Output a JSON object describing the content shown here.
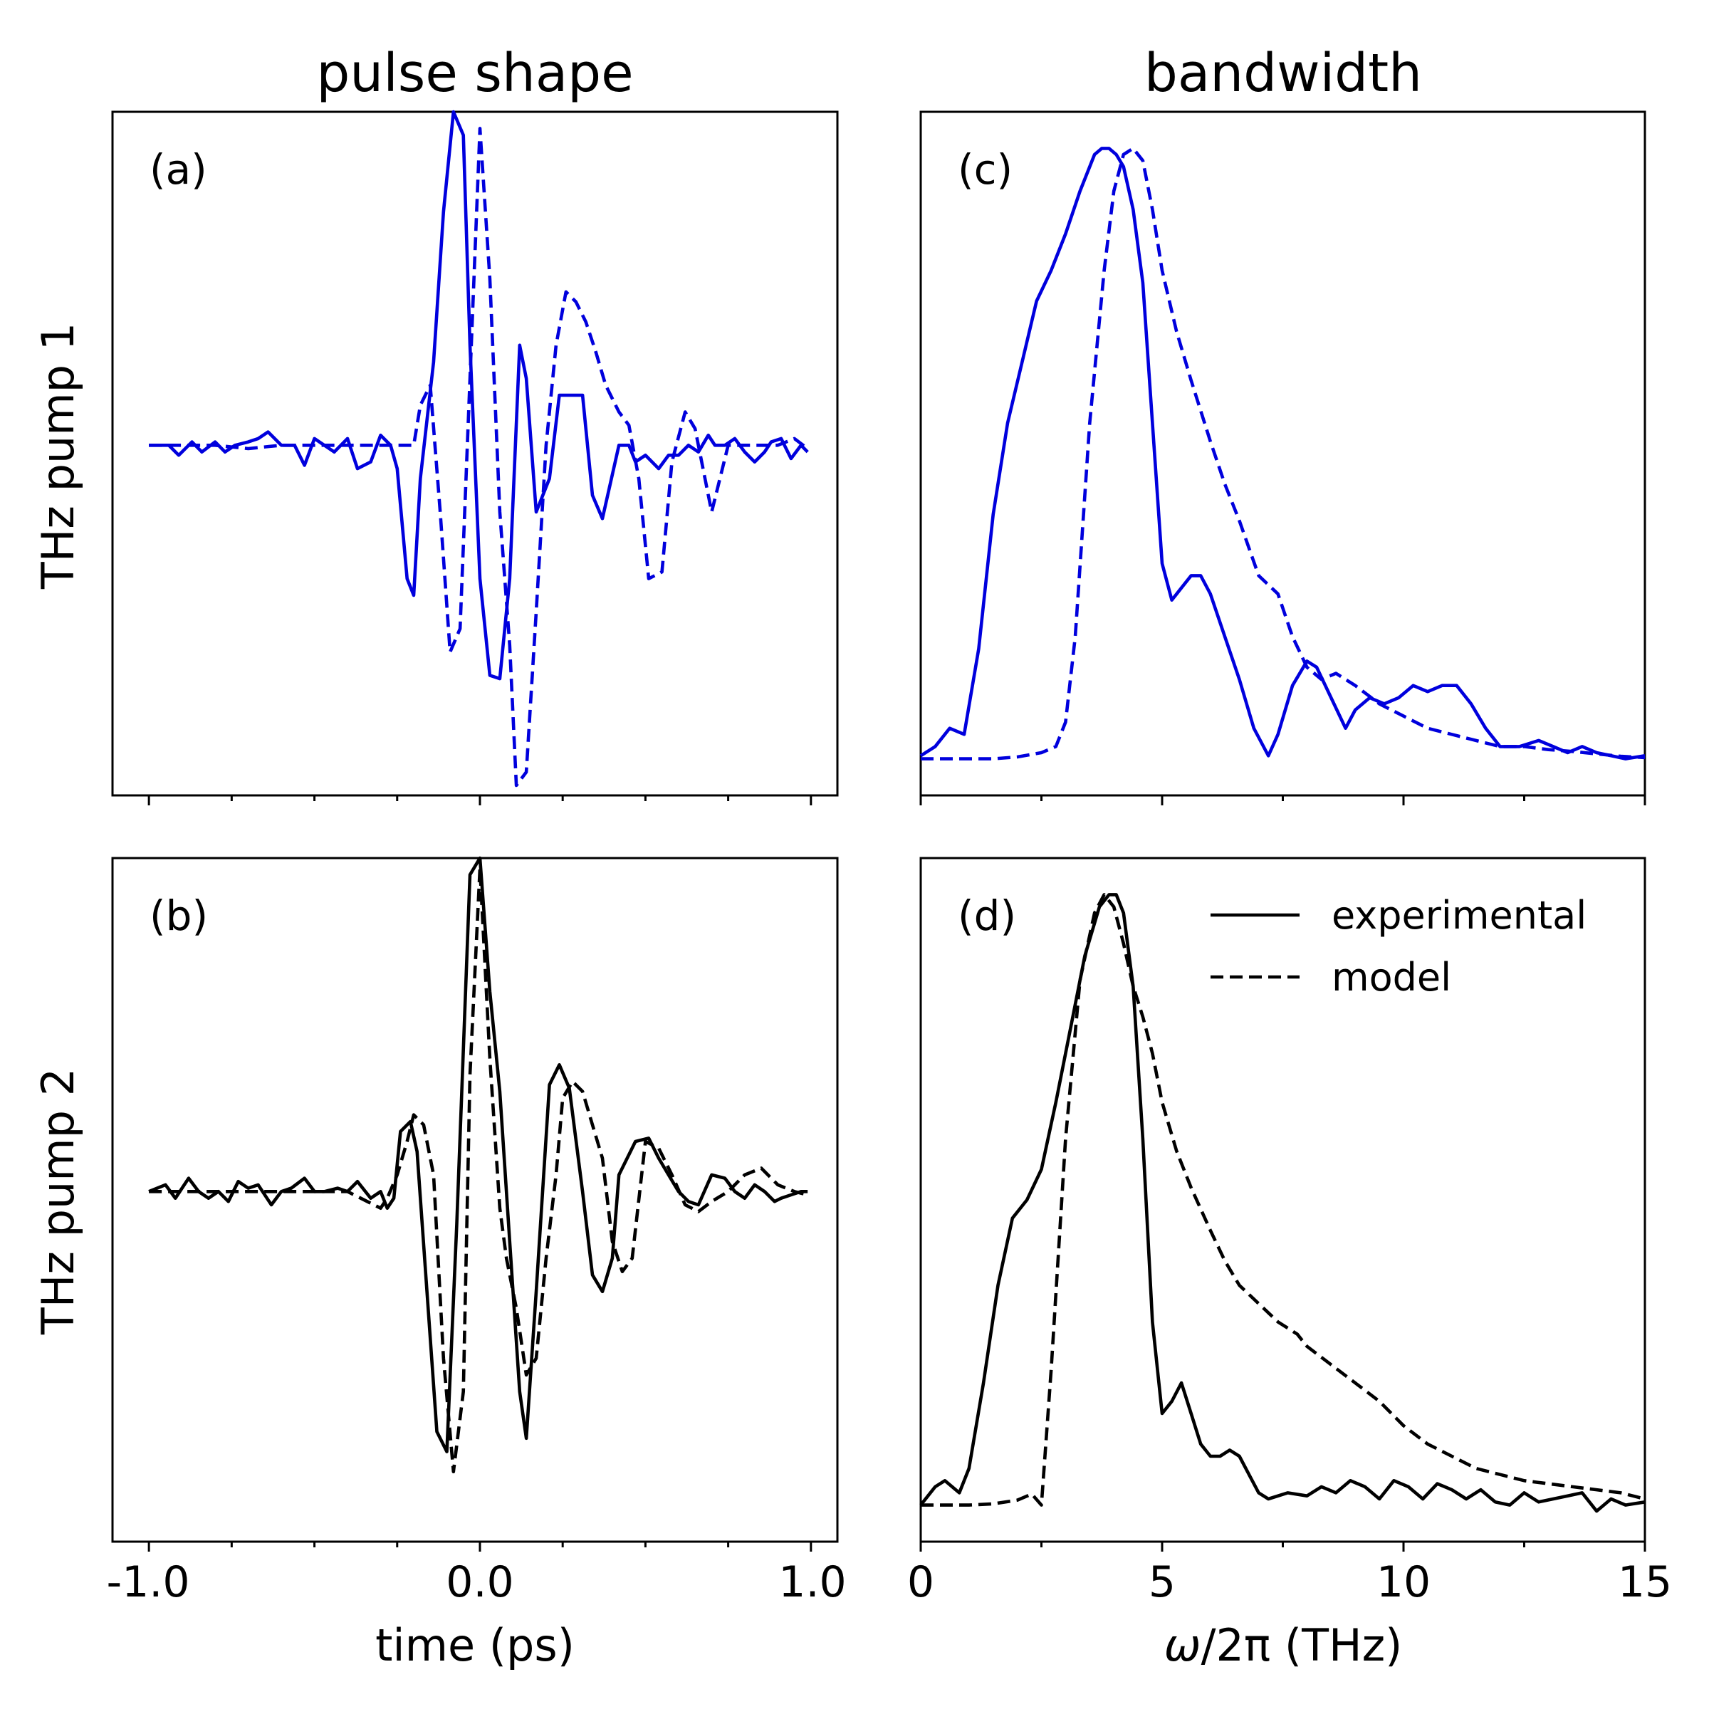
{
  "colors": {
    "pump1": "#0000dd",
    "pump2": "#000000"
  },
  "titles": {
    "left": "pulse shape",
    "right": "bandwidth"
  },
  "row_labels": {
    "top": "THz pump 1",
    "bottom": "THz pump 2"
  },
  "x_labels": {
    "time": "time (ps)",
    "freq_prefix": "ω",
    "freq_suffix": "/2π (THz)"
  },
  "legend": {
    "solid": "experimental",
    "dashed": "model"
  },
  "chart_data": [
    {
      "id": "a",
      "panel_label": "(a)",
      "type": "line",
      "xlabel": "time (ps)",
      "ylabel": "THz pump 1",
      "xlim": [
        -1.11,
        1.08
      ],
      "ylim": [
        -1.05,
        1.0
      ],
      "xticks": [
        -1.0,
        0.0,
        1.0
      ],
      "xtick_labels": [
        "-1.0",
        "0.0",
        "1.0"
      ],
      "minor_xticks": [
        -0.75,
        -0.5,
        -0.25,
        0.25,
        0.5,
        0.75
      ],
      "show_xtick_labels": false,
      "series": [
        {
          "name": "experimental",
          "style": "solid",
          "x": [
            -1.0,
            -0.94,
            -0.91,
            -0.87,
            -0.84,
            -0.8,
            -0.77,
            -0.74,
            -0.7,
            -0.67,
            -0.64,
            -0.6,
            -0.56,
            -0.53,
            -0.5,
            -0.47,
            -0.44,
            -0.4,
            -0.37,
            -0.33,
            -0.3,
            -0.27,
            -0.25,
            -0.22,
            -0.2,
            -0.18,
            -0.14,
            -0.11,
            -0.08,
            -0.05,
            -0.03,
            0.0,
            0.03,
            0.06,
            0.09,
            0.12,
            0.14,
            0.17,
            0.21,
            0.24,
            0.27,
            0.31,
            0.34,
            0.37,
            0.42,
            0.45,
            0.47,
            0.5,
            0.54,
            0.57,
            0.6,
            0.63,
            0.66,
            0.69,
            0.71,
            0.74,
            0.77,
            0.8,
            0.83,
            0.86,
            0.88,
            0.91,
            0.94,
            0.97,
            0.99
          ],
          "y": [
            0.0,
            0.0,
            -0.03,
            0.01,
            -0.02,
            0.01,
            -0.02,
            0.0,
            0.01,
            0.02,
            0.04,
            0.0,
            0.0,
            -0.06,
            0.02,
            0.0,
            -0.02,
            0.02,
            -0.07,
            -0.05,
            0.03,
            0.0,
            -0.07,
            -0.4,
            -0.45,
            -0.1,
            0.25,
            0.7,
            1.0,
            0.93,
            0.3,
            -0.4,
            -0.69,
            -0.7,
            -0.4,
            0.3,
            0.2,
            -0.2,
            -0.1,
            0.15,
            0.15,
            0.15,
            -0.15,
            -0.22,
            0.0,
            0.0,
            -0.05,
            -0.03,
            -0.07,
            -0.03,
            -0.03,
            0.0,
            -0.02,
            0.03,
            0.0,
            0.0,
            0.02,
            -0.02,
            -0.05,
            -0.02,
            0.01,
            0.02,
            -0.04,
            0.0,
            -0.02
          ]
        },
        {
          "name": "model",
          "style": "dashed",
          "x": [
            -1.0,
            -0.9,
            -0.8,
            -0.7,
            -0.6,
            -0.5,
            -0.4,
            -0.35,
            -0.3,
            -0.25,
            -0.2,
            -0.18,
            -0.15,
            -0.12,
            -0.09,
            -0.06,
            -0.03,
            0.0,
            0.03,
            0.06,
            0.09,
            0.11,
            0.14,
            0.17,
            0.2,
            0.23,
            0.26,
            0.29,
            0.32,
            0.35,
            0.38,
            0.42,
            0.45,
            0.48,
            0.51,
            0.55,
            0.58,
            0.62,
            0.65,
            0.7,
            0.75,
            0.8,
            0.85,
            0.9,
            0.95,
            0.99
          ],
          "y": [
            0.0,
            0.0,
            0.0,
            -0.01,
            0.0,
            0.0,
            0.0,
            0.0,
            0.0,
            0.0,
            0.0,
            0.12,
            0.18,
            -0.2,
            -0.62,
            -0.55,
            0.2,
            0.95,
            0.5,
            -0.2,
            -0.6,
            -1.02,
            -0.98,
            -0.5,
            0.0,
            0.3,
            0.46,
            0.43,
            0.37,
            0.28,
            0.18,
            0.1,
            0.06,
            -0.1,
            -0.4,
            -0.38,
            -0.05,
            0.1,
            0.05,
            -0.2,
            0.0,
            0.0,
            0.0,
            0.0,
            0.02,
            -0.01
          ]
        }
      ]
    },
    {
      "id": "b",
      "panel_label": "(b)",
      "type": "line",
      "xlabel": "time (ps)",
      "ylabel": "THz pump 2",
      "xlim": [
        -1.11,
        1.08
      ],
      "ylim": [
        -1.05,
        1.0
      ],
      "xticks": [
        -1.0,
        0.0,
        1.0
      ],
      "xtick_labels": [
        "-1.0",
        "0.0",
        "1.0"
      ],
      "minor_xticks": [
        -0.75,
        -0.5,
        -0.25,
        0.25,
        0.5,
        0.75
      ],
      "show_xtick_labels": true,
      "series": [
        {
          "name": "experimental",
          "style": "solid",
          "x": [
            -1.0,
            -0.95,
            -0.92,
            -0.88,
            -0.85,
            -0.82,
            -0.79,
            -0.76,
            -0.73,
            -0.7,
            -0.67,
            -0.63,
            -0.6,
            -0.57,
            -0.53,
            -0.5,
            -0.47,
            -0.43,
            -0.4,
            -0.37,
            -0.33,
            -0.3,
            -0.28,
            -0.26,
            -0.24,
            -0.21,
            -0.19,
            -0.16,
            -0.13,
            -0.1,
            -0.07,
            -0.03,
            0.0,
            0.03,
            0.06,
            0.09,
            0.12,
            0.14,
            0.17,
            0.21,
            0.24,
            0.27,
            0.31,
            0.34,
            0.37,
            0.4,
            0.42,
            0.47,
            0.51,
            0.54,
            0.57,
            0.6,
            0.63,
            0.66,
            0.7,
            0.74,
            0.77,
            0.8,
            0.83,
            0.86,
            0.89,
            0.91,
            0.94,
            0.97,
            0.99
          ],
          "y": [
            0.0,
            0.02,
            -0.02,
            0.04,
            0.0,
            -0.02,
            0.0,
            -0.03,
            0.03,
            0.01,
            0.02,
            -0.04,
            0.0,
            0.01,
            0.04,
            0.0,
            0.0,
            0.01,
            0.0,
            0.03,
            -0.02,
            0.0,
            -0.05,
            -0.02,
            0.18,
            0.21,
            0.12,
            -0.3,
            -0.72,
            -0.78,
            -0.1,
            0.95,
            1.0,
            0.6,
            0.3,
            -0.15,
            -0.6,
            -0.74,
            -0.3,
            0.32,
            0.38,
            0.31,
            0.0,
            -0.25,
            -0.3,
            -0.2,
            0.05,
            0.15,
            0.16,
            0.1,
            0.05,
            0.0,
            -0.03,
            -0.04,
            0.05,
            0.04,
            0.0,
            -0.02,
            0.02,
            0.0,
            -0.03,
            -0.02,
            -0.01,
            0.0,
            0.0
          ]
        },
        {
          "name": "model",
          "style": "dashed",
          "x": [
            -1.0,
            -0.9,
            -0.8,
            -0.7,
            -0.6,
            -0.5,
            -0.4,
            -0.3,
            -0.28,
            -0.25,
            -0.22,
            -0.2,
            -0.17,
            -0.14,
            -0.11,
            -0.08,
            -0.05,
            -0.03,
            0.0,
            0.03,
            0.06,
            0.08,
            0.11,
            0.14,
            0.17,
            0.2,
            0.23,
            0.25,
            0.28,
            0.31,
            0.34,
            0.37,
            0.4,
            0.43,
            0.46,
            0.5,
            0.54,
            0.58,
            0.62,
            0.66,
            0.7,
            0.75,
            0.8,
            0.85,
            0.9,
            0.95,
            0.99
          ],
          "y": [
            0.0,
            0.0,
            0.0,
            0.0,
            0.0,
            0.0,
            0.0,
            -0.05,
            -0.02,
            0.05,
            0.15,
            0.23,
            0.2,
            0.05,
            -0.5,
            -0.84,
            -0.6,
            0.35,
            0.97,
            0.4,
            -0.05,
            -0.2,
            -0.35,
            -0.55,
            -0.5,
            -0.2,
            0.05,
            0.28,
            0.33,
            0.3,
            0.2,
            0.1,
            -0.15,
            -0.24,
            -0.2,
            0.15,
            0.13,
            0.05,
            -0.04,
            -0.06,
            -0.03,
            0.0,
            0.05,
            0.07,
            0.02,
            0.0,
            -0.01
          ]
        }
      ]
    },
    {
      "id": "c",
      "panel_label": "(c)",
      "type": "line",
      "xlabel": "ω/2π (THz)",
      "ylabel": "",
      "xlim": [
        0,
        15
      ],
      "ylim": [
        -0.06,
        1.06
      ],
      "xticks": [
        0,
        5,
        10,
        15
      ],
      "xtick_labels": [
        "0",
        "5",
        "10",
        "15"
      ],
      "minor_xticks": [
        2.5,
        7.5,
        12.5
      ],
      "show_xtick_labels": false,
      "series": [
        {
          "name": "experimental",
          "style": "solid",
          "x": [
            0.0,
            0.3,
            0.6,
            0.9,
            1.2,
            1.5,
            1.8,
            2.1,
            2.4,
            2.7,
            3.0,
            3.3,
            3.6,
            3.75,
            3.9,
            4.05,
            4.2,
            4.4,
            4.6,
            4.8,
            5.0,
            5.2,
            5.4,
            5.6,
            5.8,
            6.0,
            6.3,
            6.6,
            6.9,
            7.2,
            7.4,
            7.7,
            8.0,
            8.2,
            8.5,
            8.8,
            9.0,
            9.3,
            9.6,
            9.9,
            10.2,
            10.5,
            10.8,
            11.1,
            11.4,
            11.7,
            12.0,
            12.4,
            12.8,
            13.1,
            13.4,
            13.7,
            14.0,
            14.3,
            14.6,
            15.0
          ],
          "y": [
            0.005,
            0.02,
            0.05,
            0.04,
            0.18,
            0.4,
            0.55,
            0.65,
            0.75,
            0.8,
            0.86,
            0.93,
            0.99,
            1.0,
            1.0,
            0.99,
            0.97,
            0.9,
            0.78,
            0.55,
            0.32,
            0.26,
            0.28,
            0.3,
            0.3,
            0.27,
            0.2,
            0.13,
            0.05,
            0.005,
            0.04,
            0.12,
            0.16,
            0.15,
            0.1,
            0.05,
            0.08,
            0.1,
            0.09,
            0.1,
            0.12,
            0.11,
            0.12,
            0.12,
            0.09,
            0.05,
            0.02,
            0.02,
            0.03,
            0.02,
            0.01,
            0.02,
            0.01,
            0.005,
            0.0,
            0.005
          ]
        },
        {
          "name": "model",
          "style": "dashed",
          "x": [
            0.0,
            1.0,
            1.5,
            2.0,
            2.5,
            2.8,
            3.0,
            3.2,
            3.5,
            3.8,
            4.0,
            4.2,
            4.4,
            4.6,
            4.8,
            5.0,
            5.3,
            5.6,
            6.0,
            6.3,
            6.6,
            7.0,
            7.4,
            7.7,
            8.0,
            8.3,
            8.6,
            9.0,
            9.5,
            10.0,
            10.5,
            11.0,
            11.5,
            12.0,
            12.5,
            13.0,
            13.5,
            14.0,
            14.5,
            15.0
          ],
          "y": [
            0.0,
            0.0,
            0.0,
            0.003,
            0.01,
            0.02,
            0.06,
            0.2,
            0.55,
            0.8,
            0.93,
            0.99,
            1.0,
            0.98,
            0.9,
            0.8,
            0.7,
            0.62,
            0.52,
            0.45,
            0.39,
            0.3,
            0.27,
            0.2,
            0.15,
            0.13,
            0.14,
            0.12,
            0.09,
            0.07,
            0.05,
            0.04,
            0.03,
            0.02,
            0.02,
            0.015,
            0.012,
            0.008,
            0.004,
            0.002
          ]
        }
      ]
    },
    {
      "id": "d",
      "panel_label": "(d)",
      "type": "line",
      "xlabel": "ω/2π (THz)",
      "ylabel": "",
      "xlim": [
        0,
        15
      ],
      "ylim": [
        -0.06,
        1.06
      ],
      "xticks": [
        0,
        5,
        10,
        15
      ],
      "xtick_labels": [
        "0",
        "5",
        "10",
        "15"
      ],
      "minor_xticks": [
        2.5,
        7.5,
        12.5
      ],
      "show_xtick_labels": true,
      "legend_position": "top-right",
      "series": [
        {
          "name": "experimental",
          "style": "solid",
          "x": [
            0.0,
            0.3,
            0.5,
            0.8,
            1.0,
            1.3,
            1.6,
            1.9,
            2.2,
            2.5,
            2.8,
            3.1,
            3.4,
            3.7,
            3.9,
            4.05,
            4.2,
            4.4,
            4.6,
            4.8,
            5.0,
            5.2,
            5.4,
            5.6,
            5.8,
            6.0,
            6.2,
            6.4,
            6.6,
            6.8,
            7.0,
            7.2,
            7.6,
            8.0,
            8.3,
            8.6,
            8.9,
            9.2,
            9.5,
            9.8,
            10.1,
            10.4,
            10.7,
            11.0,
            11.3,
            11.6,
            11.9,
            12.2,
            12.5,
            12.8,
            13.1,
            13.4,
            13.7,
            14.0,
            14.3,
            14.6,
            15.0
          ],
          "y": [
            0.0,
            0.03,
            0.04,
            0.02,
            0.06,
            0.2,
            0.36,
            0.47,
            0.5,
            0.55,
            0.66,
            0.78,
            0.9,
            0.98,
            1.0,
            1.0,
            0.97,
            0.85,
            0.6,
            0.3,
            0.15,
            0.17,
            0.2,
            0.15,
            0.1,
            0.08,
            0.08,
            0.09,
            0.08,
            0.05,
            0.02,
            0.01,
            0.02,
            0.015,
            0.03,
            0.02,
            0.04,
            0.03,
            0.01,
            0.04,
            0.03,
            0.01,
            0.035,
            0.025,
            0.01,
            0.025,
            0.005,
            0.0,
            0.02,
            0.005,
            0.01,
            0.015,
            0.02,
            -0.01,
            0.01,
            0.0,
            0.005
          ]
        },
        {
          "name": "model",
          "style": "dashed",
          "x": [
            0.0,
            1.0,
            1.5,
            2.0,
            2.3,
            2.5,
            2.7,
            3.0,
            3.3,
            3.6,
            3.8,
            4.0,
            4.2,
            4.4,
            4.6,
            4.8,
            5.0,
            5.3,
            5.6,
            6.0,
            6.3,
            6.6,
            7.0,
            7.4,
            7.8,
            8.0,
            8.5,
            9.0,
            9.5,
            10.0,
            10.5,
            11.0,
            11.5,
            12.0,
            12.5,
            13.0,
            13.5,
            14.0,
            14.5,
            15.0
          ],
          "y": [
            0.0,
            0.0,
            0.002,
            0.008,
            0.018,
            0.0,
            0.22,
            0.6,
            0.86,
            0.97,
            1.0,
            0.98,
            0.92,
            0.85,
            0.8,
            0.74,
            0.66,
            0.58,
            0.52,
            0.45,
            0.4,
            0.36,
            0.33,
            0.3,
            0.28,
            0.26,
            0.23,
            0.2,
            0.17,
            0.13,
            0.1,
            0.08,
            0.06,
            0.05,
            0.04,
            0.035,
            0.03,
            0.025,
            0.02,
            0.01
          ]
        }
      ]
    }
  ]
}
